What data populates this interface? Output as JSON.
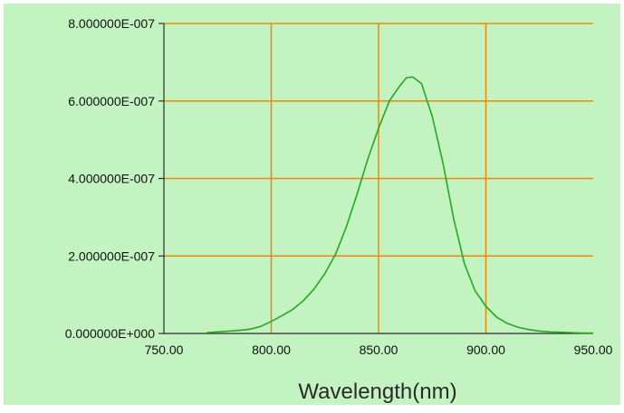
{
  "chart_data": {
    "type": "line",
    "xlabel": "Wavelength(nm)",
    "ylabel": "",
    "xlim": [
      750,
      950
    ],
    "ylim": [
      0,
      8e-07
    ],
    "x_ticks": [
      750,
      800,
      850,
      900,
      950
    ],
    "x_tick_labels": [
      "750.00",
      "800.00",
      "850.00",
      "900.00",
      "950.00"
    ],
    "y_ticks": [
      0,
      2e-07,
      4e-07,
      6e-07,
      8e-07
    ],
    "y_tick_labels": [
      "0.000000E+000",
      "2.000000E-007",
      "4.000000E-007",
      "6.000000E-007",
      "8.000000E-007"
    ],
    "grid": true,
    "series": [
      {
        "color": "#22aa22",
        "x": [
          770,
          775,
          780,
          785,
          790,
          795,
          800,
          805,
          810,
          815,
          820,
          825,
          830,
          835,
          840,
          845,
          850,
          855,
          860,
          863,
          866,
          870,
          875,
          880,
          885,
          890,
          895,
          900,
          905,
          910,
          915,
          920,
          925,
          930,
          935,
          940,
          945,
          950
        ],
        "y": [
          2e-09,
          4e-09,
          6e-09,
          8e-09,
          1.1e-08,
          1.8e-08,
          3.1e-08,
          4.6e-08,
          6.2e-08,
          8.5e-08,
          1.15e-07,
          1.55e-07,
          2.05e-07,
          2.75e-07,
          3.6e-07,
          4.5e-07,
          5.3e-07,
          6e-07,
          6.4e-07,
          6.6e-07,
          6.62e-07,
          6.45e-07,
          5.6e-07,
          4.4e-07,
          2.95e-07,
          1.8e-07,
          1.1e-07,
          7e-08,
          4.2e-08,
          2.6e-08,
          1.6e-08,
          1e-08,
          6e-09,
          4e-09,
          3e-09,
          2e-09,
          1e-09,
          1e-09
        ]
      }
    ],
    "colors": {
      "background": "#c3f3c0",
      "grid": "#ee8a00",
      "axis": "#2d2d2d",
      "text": "#111111"
    }
  }
}
